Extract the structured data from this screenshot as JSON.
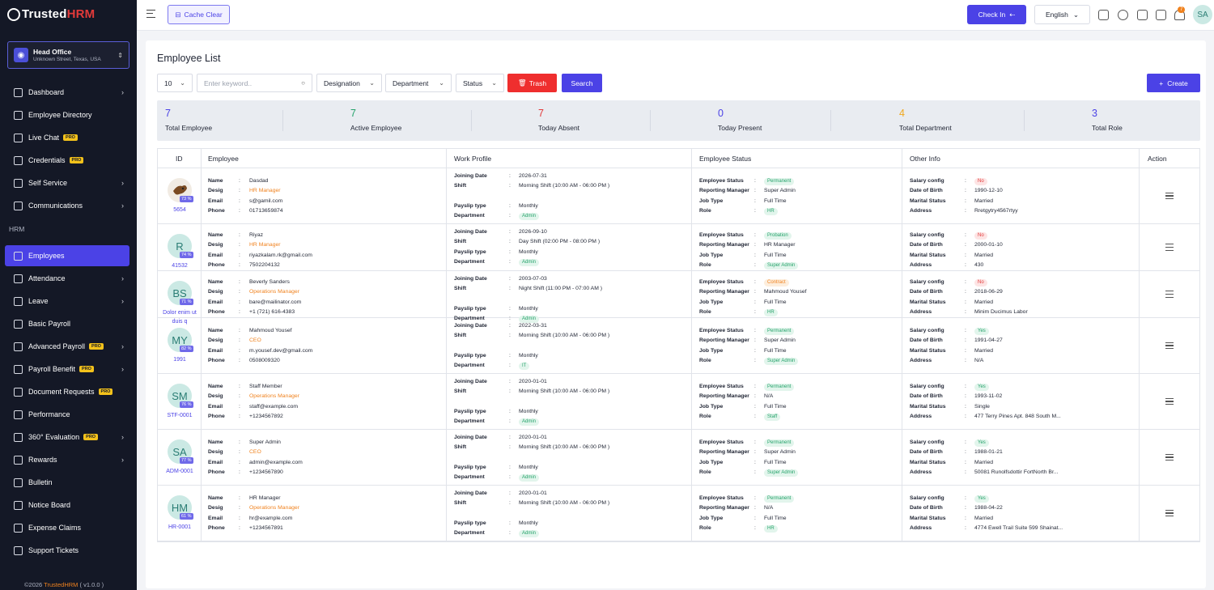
{
  "app": {
    "logo_main": "Trusted",
    "logo_accent": "HRM"
  },
  "branch": {
    "name": "Head Office",
    "address": "Unknown Street, Texas, USA"
  },
  "sidebar": {
    "items_top": [
      {
        "label": "Dashboard",
        "arrow": true,
        "pro": false
      },
      {
        "label": "Employee Directory",
        "arrow": false,
        "pro": false
      },
      {
        "label": "Live Chat",
        "arrow": false,
        "pro": true
      },
      {
        "label": "Credentials",
        "arrow": false,
        "pro": true
      },
      {
        "label": "Self Service",
        "arrow": true,
        "pro": false
      },
      {
        "label": "Communications",
        "arrow": true,
        "pro": false
      }
    ],
    "section": "HRM",
    "items_hrm": [
      {
        "label": "Employees",
        "arrow": false,
        "pro": false,
        "active": true
      },
      {
        "label": "Attendance",
        "arrow": true,
        "pro": false
      },
      {
        "label": "Leave",
        "arrow": true,
        "pro": false
      },
      {
        "label": "Basic Payroll",
        "arrow": false,
        "pro": false
      },
      {
        "label": "Advanced Payroll",
        "arrow": true,
        "pro": true
      },
      {
        "label": "Payroll Benefit",
        "arrow": true,
        "pro": true
      },
      {
        "label": "Document Requests",
        "arrow": false,
        "pro": true
      },
      {
        "label": "Performance",
        "arrow": false,
        "pro": false
      },
      {
        "label": "360° Evaluation",
        "arrow": true,
        "pro": true
      },
      {
        "label": "Rewards",
        "arrow": true,
        "pro": false
      },
      {
        "label": "Bulletin",
        "arrow": false,
        "pro": false
      },
      {
        "label": "Notice Board",
        "arrow": false,
        "pro": false
      },
      {
        "label": "Expense Claims",
        "arrow": false,
        "pro": false
      },
      {
        "label": "Support Tickets",
        "arrow": false,
        "pro": false
      }
    ],
    "pro_label": "PRO",
    "copyright_prefix": "©2026 ",
    "copyright_brand": "TrustedHRM",
    "copyright_suffix": " ( v1.0.0 )"
  },
  "topbar": {
    "cache_label": "Cache Clear",
    "checkin_label": "Check In",
    "language": "English",
    "notification_count": "7",
    "user_initials": "SA"
  },
  "page": {
    "title": "Employee List"
  },
  "filters": {
    "per_page": "10",
    "search_placeholder": "Enter keyword..",
    "designation": "Designation",
    "department": "Department",
    "status": "Status",
    "trash_label": "Trash",
    "search_label": "Search",
    "create_label": "Create"
  },
  "stats": [
    {
      "value": "7",
      "label": "Total Employee",
      "color": "#4b42e6"
    },
    {
      "value": "7",
      "label": "Active Employee",
      "color": "#26a36b"
    },
    {
      "value": "7",
      "label": "Today Absent",
      "color": "#e23a3a"
    },
    {
      "value": "0",
      "label": "Today Present",
      "color": "#4b42e6"
    },
    {
      "value": "4",
      "label": "Total Department",
      "color": "#f0a81e"
    },
    {
      "value": "3",
      "label": "Total Role",
      "color": "#4b42e6"
    }
  ],
  "table": {
    "headers": [
      "ID",
      "Employee",
      "Work Profile",
      "Employee Status",
      "Other Info",
      "Action"
    ],
    "emp_keys": [
      "Name",
      "Desig",
      "Email",
      "Phone"
    ],
    "work_keys": [
      "Joining Date",
      "Shift",
      "Payslip type",
      "Department"
    ],
    "status_keys": [
      "Employee Status",
      "Reporting Manager",
      "Job Type",
      "Role"
    ],
    "other_keys": [
      "Salary config",
      "Date of Birth",
      "Marital Status",
      "Address"
    ],
    "rows": [
      {
        "initials": "",
        "photo": true,
        "pct": "73 %",
        "id": "5654",
        "name": "Dasdad",
        "desig": "HR Manager",
        "email": "s@gamil.com",
        "phone": "01713659874",
        "joining": "2026-07-31",
        "shift": "Morning Shift (10:00 AM - 06:00 PM )",
        "payslip": "Monthly",
        "dept": "Admin",
        "status": "Permanent",
        "status_kind": "g",
        "manager": "Super Admin",
        "job": "Full Time",
        "role": "HR",
        "salary": "No",
        "salary_kind": "r",
        "dob": "1990-12-10",
        "marital": "Married",
        "address": "Rretgytry4567rtyy"
      },
      {
        "initials": "R",
        "pct": "74 %",
        "id": "41532",
        "name": "Riyaz",
        "desig": "HR Manager",
        "email": "riyazkalam.rk@gmail.com",
        "phone": "7502204132",
        "joining": "2026-09-10",
        "shift": "Day Shift (02:00 PM - 08:00 PM )",
        "payslip": "Monthly",
        "dept": "Admin",
        "status": "Probation",
        "status_kind": "g",
        "manager": "HR Manager",
        "job": "Full Time",
        "role": "Super Admin",
        "salary": "No",
        "salary_kind": "r",
        "dob": "2000-01-10",
        "marital": "Married",
        "address": "430"
      },
      {
        "initials": "BS",
        "pct": "71 %",
        "id": "Dolor enim ut duis q",
        "name": "Beverly Sanders",
        "desig": "Operations Manager",
        "email": "bare@mailinator.com",
        "phone": "+1 (721) 616-4383",
        "joining": "2003-07-03",
        "shift": "Night Shift (11:00 PM - 07:00 AM )",
        "payslip": "Monthly",
        "dept": "Admin",
        "status": "Contract",
        "status_kind": "o",
        "manager": "Mahmoud Yousef",
        "job": "Full Time",
        "role": "HR",
        "salary": "No",
        "salary_kind": "r",
        "dob": "2018-06-29",
        "marital": "Married",
        "address": "Minim Ducimus Labor"
      },
      {
        "initials": "MY",
        "pct": "82 %",
        "id": "1991",
        "name": "Mahmoud Yousef",
        "desig": "CEO",
        "email": "m.yousef.dev@gmail.com",
        "phone": "0508009320",
        "joining": "2022-03-31",
        "shift": "Morning Shift (10:00 AM - 06:00 PM )",
        "payslip": "Monthly",
        "dept": "IT",
        "status": "Permanent",
        "status_kind": "g",
        "manager": "Super Admin",
        "job": "Full Time",
        "role": "Super Admin",
        "salary": "Yes",
        "salary_kind": "g",
        "dob": "1991-04-27",
        "marital": "Married",
        "address": "N/A"
      },
      {
        "initials": "SM",
        "pct": "76 %",
        "id": "STF-0001",
        "name": "Staff Member",
        "desig": "Operations Manager",
        "email": "staff@example.com",
        "phone": "+1234567892",
        "joining": "2020-01-01",
        "shift": "Morning Shift (10:00 AM - 06:00 PM )",
        "payslip": "Monthly",
        "dept": "Admin",
        "status": "Permanent",
        "status_kind": "g",
        "manager": "N/A",
        "job": "Full Time",
        "role": "Staff",
        "salary": "Yes",
        "salary_kind": "g",
        "dob": "1993-11-02",
        "marital": "Single",
        "address": "477 Terry Pines Apt. 848 South M..."
      },
      {
        "initials": "SA",
        "pct": "77 %",
        "id": "ADM-0001",
        "name": "Super Admin",
        "desig": "CEO",
        "email": "admin@example.com",
        "phone": "+1234567890",
        "joining": "2020-01-01",
        "shift": "Morning Shift (10:00 AM - 06:00 PM )",
        "payslip": "Monthly",
        "dept": "Admin",
        "status": "Permanent",
        "status_kind": "g",
        "manager": "Super Admin",
        "job": "Full Time",
        "role": "Super Admin",
        "salary": "Yes",
        "salary_kind": "g",
        "dob": "1988-01-21",
        "marital": "Married",
        "address": "50081 Runolfsdottir FortNorth Br..."
      },
      {
        "initials": "HM",
        "pct": "61 %",
        "id": "HR-0001",
        "name": "HR Manager",
        "desig": "Operations Manager",
        "email": "hr@example.com",
        "phone": "+1234567891",
        "joining": "2020-01-01",
        "shift": "Morning Shift (10:00 AM - 06:00 PM )",
        "payslip": "Monthly",
        "dept": "Admin",
        "status": "Permanent",
        "status_kind": "g",
        "manager": "N/A",
        "job": "Full Time",
        "role": "HR",
        "salary": "Yes",
        "salary_kind": "g",
        "dob": "1988-04-22",
        "marital": "Married",
        "address": "4774 Ewell Trail Suite 599 Shainat..."
      }
    ]
  }
}
